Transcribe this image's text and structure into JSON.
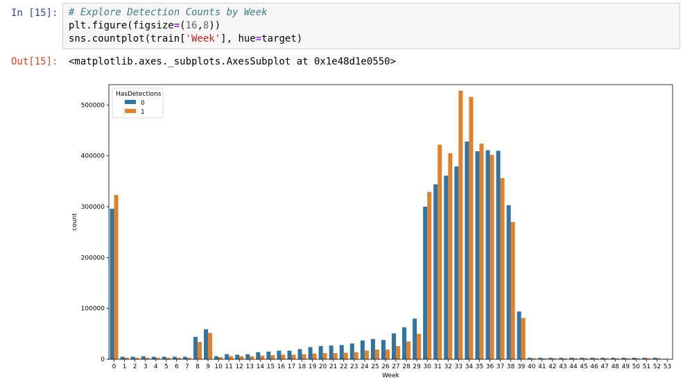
{
  "cell": {
    "in_prompt": "In [15]:",
    "code": {
      "comment": "# Explore Detection Counts by Week",
      "line2": {
        "a": "plt.figure(figsize",
        "op": "=",
        "b": "(",
        "n1": "16",
        "c": ",",
        "n2": "8",
        "d": "))"
      },
      "line3": {
        "a": "sns.countplot(train[",
        "s": "'Week'",
        "b": "], hue",
        "op": "=",
        "c": "target)"
      }
    },
    "out_prompt": "Out[15]:",
    "out_text": "<matplotlib.axes._subplots.AxesSubplot at 0x1e48d1e0550>"
  },
  "chart_data": {
    "type": "bar",
    "xlabel": "Week",
    "ylabel": "count",
    "ylim": [
      0,
      540000
    ],
    "yticks": [
      0,
      100000,
      200000,
      300000,
      400000,
      500000
    ],
    "ytick_labels": [
      "0",
      "100000",
      "200000",
      "300000",
      "400000",
      "500000"
    ],
    "legend": {
      "title": "HasDetections",
      "position": "top-left"
    },
    "categories": [
      "0",
      "1",
      "2",
      "3",
      "4",
      "5",
      "6",
      "7",
      "8",
      "9",
      "10",
      "11",
      "12",
      "13",
      "14",
      "15",
      "16",
      "17",
      "18",
      "19",
      "20",
      "21",
      "22",
      "23",
      "24",
      "25",
      "26",
      "27",
      "28",
      "29",
      "30",
      "31",
      "32",
      "33",
      "34",
      "35",
      "36",
      "37",
      "38",
      "39",
      "40",
      "41",
      "42",
      "43",
      "44",
      "45",
      "46",
      "47",
      "48",
      "49",
      "50",
      "51",
      "52",
      "53"
    ],
    "series": [
      {
        "name": "0",
        "color": "#3274a1",
        "values": [
          296000,
          5000,
          5000,
          6000,
          5000,
          5000,
          5000,
          5000,
          44000,
          59000,
          6000,
          10000,
          9000,
          10000,
          14000,
          15000,
          17000,
          17000,
          20000,
          24000,
          26000,
          27000,
          28000,
          31000,
          37000,
          40000,
          38000,
          51000,
          63000,
          80000,
          300000,
          344000,
          361000,
          379000,
          428000,
          409000,
          411000,
          410000,
          303000,
          94000,
          3000,
          3000,
          3000,
          3000,
          3000,
          3000,
          3000,
          3000,
          3000,
          3000,
          3000,
          3000,
          3000,
          1000
        ]
      },
      {
        "name": "1",
        "color": "#e1812c",
        "values": [
          323000,
          3000,
          3000,
          3000,
          3000,
          3000,
          3000,
          3000,
          34000,
          52000,
          4000,
          6000,
          6000,
          6000,
          7000,
          8000,
          9000,
          9000,
          10000,
          11000,
          12000,
          12000,
          13000,
          14000,
          17000,
          19000,
          19000,
          26000,
          35000,
          50000,
          329000,
          422000,
          405000,
          528000,
          516000,
          424000,
          402000,
          356000,
          270000,
          81000,
          2000,
          2000,
          2000,
          2000,
          2000,
          2000,
          2000,
          2000,
          2000,
          2000,
          2000,
          2000,
          2000,
          500
        ]
      }
    ]
  }
}
